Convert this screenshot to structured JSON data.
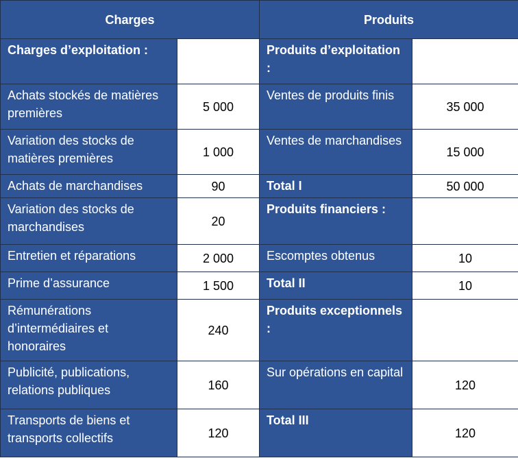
{
  "header": {
    "charges": "Charges",
    "produits": "Produits"
  },
  "rows": [
    {
      "charge": "Charges d’exploitation :",
      "produit": "Produits d’exploitation :"
    },
    {
      "charge": "Achats stockés de matières premières",
      "charge_amount": "5 000",
      "produit": "Ventes de produits finis",
      "produit_amount": "35 000"
    },
    {
      "charge": "Variation des stocks de matières premières",
      "charge_amount": "1 000",
      "produit": "Ventes de marchandises",
      "produit_amount": "15 000"
    },
    {
      "charge": "Achats de marchandises",
      "charge_amount": "90",
      "produit": "Total I",
      "produit_amount": "50 000"
    },
    {
      "charge": "Variation des stocks de marchandises",
      "charge_amount": "20",
      "produit": "Produits financiers :"
    },
    {
      "charge": "Entretien et réparations",
      "charge_amount": "2 000",
      "produit": "Escomptes obtenus",
      "produit_amount": "10"
    },
    {
      "charge": "Prime d’assurance",
      "charge_amount": "1 500",
      "produit": "Total II",
      "produit_amount": "10"
    },
    {
      "charge": "Rémunérations d’intermédiaires et honoraires",
      "charge_amount": "240",
      "produit": "Produits exceptionnels :"
    },
    {
      "charge": "Publicité, publications, relations publiques",
      "charge_amount": "160",
      "produit": "Sur opérations en capital",
      "produit_amount": "120"
    },
    {
      "charge": "Transports de biens et transports collectifs",
      "charge_amount": "120",
      "produit": "Total III",
      "produit_amount": "120"
    }
  ]
}
